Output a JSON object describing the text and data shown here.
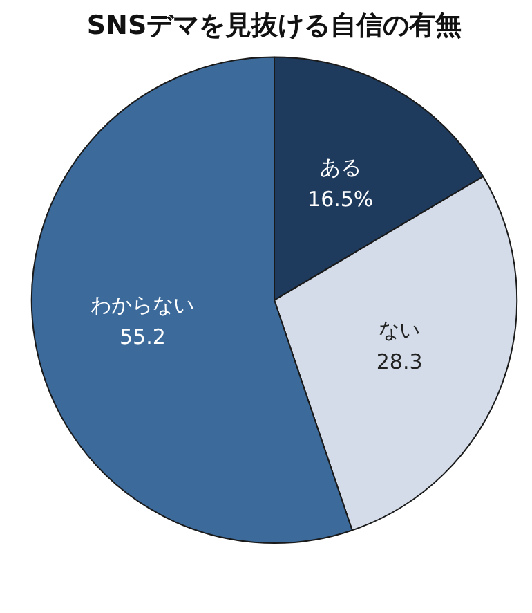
{
  "chart_data": {
    "type": "pie",
    "title": "SNSデマを見抜ける自信の有無",
    "categories": [
      "ある",
      "ない",
      "わからない"
    ],
    "values": [
      16.5,
      28.3,
      55.2
    ],
    "value_labels": [
      "16.5%",
      "28.3",
      "55.2"
    ],
    "colors": [
      "#1e3a5c",
      "#d3dce8",
      "#3b6a9b"
    ],
    "legend": false
  }
}
